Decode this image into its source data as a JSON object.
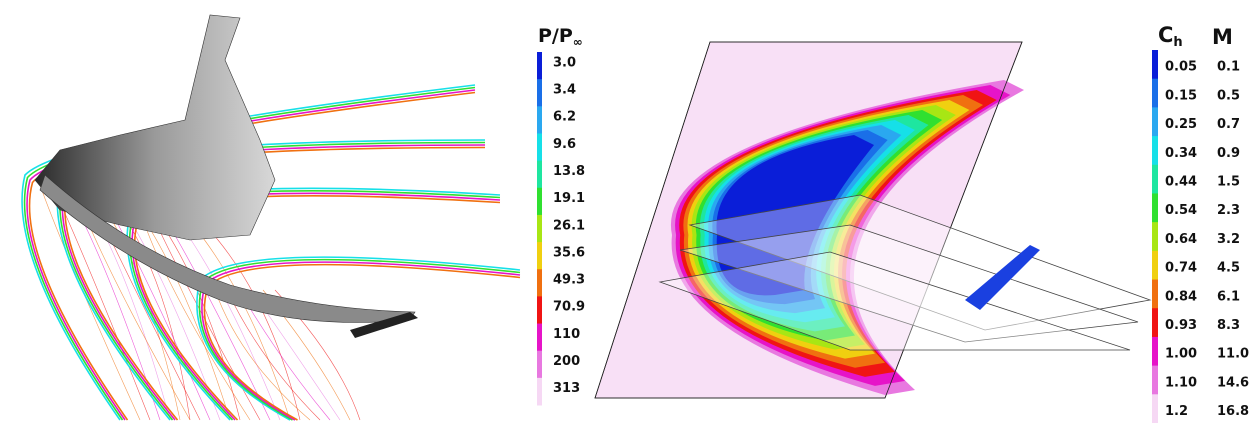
{
  "left_legend": {
    "title": "P/P",
    "title_sub": "∞",
    "labels": [
      "3.0",
      "3.4",
      "6.2",
      "9.6",
      "13.8",
      "19.1",
      "26.1",
      "35.6",
      "49.3",
      "70.9",
      "110",
      "200",
      "313"
    ]
  },
  "right_legend": {
    "title_ch": "C",
    "title_ch_sub": "h",
    "title_m": "M",
    "ch_labels": [
      "0.05",
      "0.15",
      "0.25",
      "0.34",
      "0.44",
      "0.54",
      "0.64",
      "0.74",
      "0.84",
      "0.93",
      "1.00",
      "1.10",
      "1.2"
    ],
    "m_labels": [
      "0.1",
      "0.5",
      "0.7",
      "0.9",
      "1.5",
      "2.3",
      "3.2",
      "4.5",
      "6.1",
      "8.3",
      "11.0",
      "14.6",
      "16.8"
    ]
  },
  "colors": [
    "#0a1ed8",
    "#1a6fe8",
    "#2aa8f0",
    "#16e0e8",
    "#1ee6a0",
    "#30e030",
    "#a8e614",
    "#f0d010",
    "#f07010",
    "#f01414",
    "#e614c8",
    "#e878e0",
    "#f6d8f4"
  ]
}
